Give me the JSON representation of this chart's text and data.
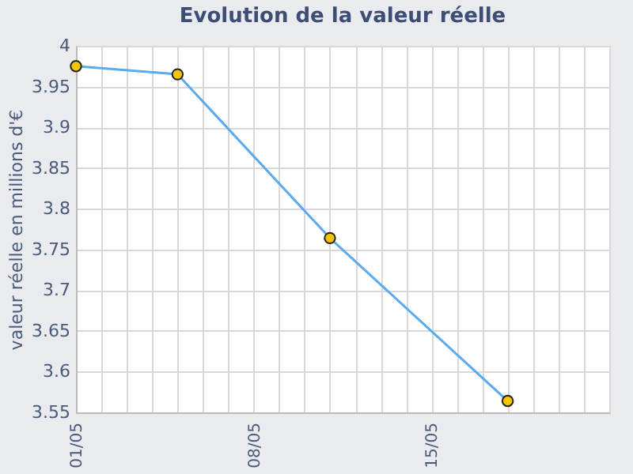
{
  "chart_data": {
    "type": "line",
    "title": "Evolution de la valeur réelle",
    "ylabel": "valeur réelle en millions d'€",
    "x": [
      "--05-01",
      "--05-05",
      "--05-11",
      "--05-18"
    ],
    "series": [
      {
        "color": "#5aaaf0",
        "values": [
          3.975,
          3.965,
          3.764,
          3.564
        ]
      }
    ],
    "xlim": [
      "--05-01",
      "--05-22"
    ],
    "xticks": [
      {
        "value": "--05-01",
        "label": "01/05"
      },
      {
        "value": "--05-02",
        "label": null
      },
      {
        "value": "--05-03",
        "label": null
      },
      {
        "value": "--05-04",
        "label": null
      },
      {
        "value": "--05-05",
        "label": null
      },
      {
        "value": "--05-06",
        "label": null
      },
      {
        "value": "--05-07",
        "label": null
      },
      {
        "value": "--05-08",
        "label": "08/05"
      },
      {
        "value": "--05-09",
        "label": null
      },
      {
        "value": "--05-10",
        "label": null
      },
      {
        "value": "--05-11",
        "label": null
      },
      {
        "value": "--05-12",
        "label": null
      },
      {
        "value": "--05-13",
        "label": null
      },
      {
        "value": "--05-14",
        "label": null
      },
      {
        "value": "--05-15",
        "label": "15/05"
      },
      {
        "value": "--05-16",
        "label": null
      },
      {
        "value": "--05-17",
        "label": null
      },
      {
        "value": "--05-18",
        "label": null
      },
      {
        "value": "--05-19",
        "label": null
      },
      {
        "value": "--05-20",
        "label": null
      },
      {
        "value": "--05-21",
        "label": null
      },
      {
        "value": "--05-22",
        "label": null
      }
    ],
    "ylim": [
      3.55,
      4
    ],
    "yticks": [
      3.55,
      3.6,
      3.65,
      3.7,
      3.75,
      3.8,
      3.85,
      3.9,
      3.95,
      4
    ],
    "grid": true,
    "marker": "circle"
  }
}
